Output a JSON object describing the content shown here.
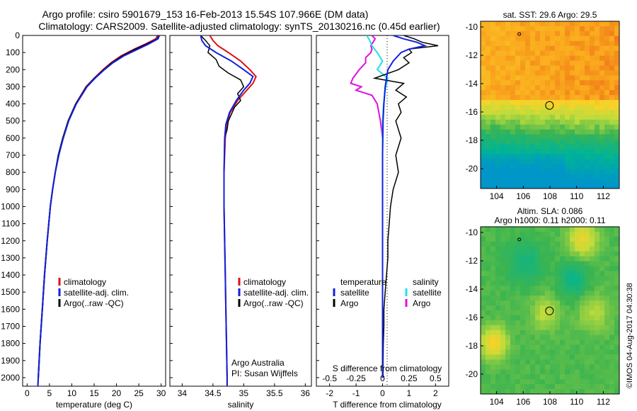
{
  "title": {
    "line1": "Argo profile: csiro 5901679_153 16-Feb-2013 15.54S 107.966E (DM data)",
    "line2": "Climatology: CARS2009. Satellite-adjusted climatology: synTS_20130216.nc (0.45d earlier)"
  },
  "colors": {
    "climatology": "#dd1111",
    "satellite": "#1122dd",
    "argo": "#000000",
    "sat_salinity": "#22e0e8",
    "argo_salinity": "#dd11dd"
  },
  "chart_data": [
    {
      "type": "line",
      "id": "temperature",
      "xlabel": "temperature (deg C)",
      "xlim": [
        -1,
        31
      ],
      "ylim": [
        2050,
        0
      ],
      "xticks": [
        0,
        5,
        10,
        15,
        20,
        25,
        30
      ],
      "yticks": [
        0,
        100,
        200,
        300,
        400,
        500,
        600,
        700,
        800,
        900,
        1000,
        1100,
        1200,
        1300,
        1400,
        1500,
        1600,
        1700,
        1800,
        1900,
        2000
      ],
      "legend": [
        "climatology",
        "satellite-adj. clim.",
        "Argo(..raw -QC)"
      ],
      "series": [
        {
          "name": "climatology",
          "depth": [
            0,
            20,
            50,
            80,
            120,
            160,
            200,
            250,
            300,
            400,
            500,
            600,
            700,
            800,
            900,
            1000,
            1200,
            1400,
            1600,
            1800,
            2000,
            2050
          ],
          "values": [
            29.2,
            28.8,
            26.5,
            24.0,
            21.0,
            18.8,
            17.0,
            15.0,
            13.2,
            10.9,
            9.2,
            8.0,
            7.0,
            6.3,
            5.7,
            5.2,
            4.5,
            3.9,
            3.4,
            2.9,
            2.5,
            2.4
          ]
        },
        {
          "name": "satellite-adj. clim.",
          "depth": [
            0,
            20,
            50,
            80,
            120,
            160,
            200,
            250,
            300,
            400,
            500,
            600,
            700,
            800,
            900,
            1000,
            1200,
            1400,
            1600,
            1800,
            2000,
            2050
          ],
          "values": [
            29.6,
            29.3,
            27.2,
            24.8,
            21.6,
            19.2,
            17.3,
            15.2,
            13.4,
            11.0,
            9.3,
            8.1,
            7.1,
            6.3,
            5.7,
            5.2,
            4.5,
            3.9,
            3.4,
            2.9,
            2.5,
            2.4
          ]
        },
        {
          "name": "Argo(..raw -QC)",
          "depth": [
            0,
            20,
            50,
            80,
            120,
            160,
            200,
            250,
            300,
            400,
            500,
            600,
            700,
            800,
            900,
            1000,
            1200,
            1400,
            1600,
            1800,
            2000
          ],
          "values": [
            29.5,
            29.2,
            26.8,
            24.3,
            21.3,
            19.0,
            17.2,
            15.1,
            13.3,
            10.9,
            9.2,
            8.0,
            7.0,
            6.3,
            5.7,
            5.2,
            4.5,
            3.9,
            3.4,
            2.9,
            2.5
          ]
        }
      ]
    },
    {
      "type": "line",
      "id": "salinity",
      "xlabel": "salinity",
      "xlim": [
        33.8,
        36.1
      ],
      "ylim": [
        2050,
        0
      ],
      "xticks": [
        34,
        34.5,
        35,
        35.5,
        36
      ],
      "legend": [
        "climatology",
        "satellite-adj. clim.",
        "Argo(..raw -QC)"
      ],
      "annotation": [
        "Argo Australia",
        "PI: Susan Wijffels"
      ],
      "series": [
        {
          "name": "climatology",
          "depth": [
            0,
            30,
            60,
            100,
            150,
            200,
            240,
            280,
            320,
            380,
            450,
            520,
            600,
            800,
            1000,
            1200,
            1400,
            1600,
            1800,
            2000,
            2050
          ],
          "values": [
            34.45,
            34.5,
            34.58,
            34.75,
            34.95,
            35.1,
            35.2,
            35.15,
            35.05,
            34.9,
            34.78,
            34.72,
            34.7,
            34.68,
            34.68,
            34.69,
            34.7,
            34.71,
            34.72,
            34.73,
            34.73
          ]
        },
        {
          "name": "satellite-adj. clim.",
          "depth": [
            0,
            30,
            60,
            100,
            150,
            200,
            240,
            280,
            320,
            380,
            450,
            520,
            600,
            800,
            1000,
            1200,
            1400,
            1600,
            1800,
            2000,
            2050
          ],
          "values": [
            34.3,
            34.32,
            34.38,
            34.55,
            34.8,
            35.0,
            35.15,
            35.1,
            35.0,
            34.88,
            34.77,
            34.71,
            34.69,
            34.68,
            34.68,
            34.69,
            34.7,
            34.71,
            34.72,
            34.73,
            34.73
          ]
        },
        {
          "name": "Argo(..raw -QC)",
          "depth": [
            0,
            30,
            60,
            100,
            140,
            180,
            220,
            260,
            300,
            340,
            380,
            420,
            460,
            500,
            550,
            600,
            800,
            1000,
            1200,
            1400,
            1600,
            1800,
            2000
          ],
          "values": [
            34.3,
            34.38,
            34.45,
            34.42,
            34.55,
            34.6,
            34.75,
            34.95,
            35.0,
            34.9,
            34.95,
            34.85,
            34.8,
            34.75,
            34.73,
            34.69,
            34.68,
            34.68,
            34.69,
            34.7,
            34.71,
            34.72,
            34.73
          ]
        }
      ]
    },
    {
      "type": "line",
      "id": "difference",
      "xlabel": "T difference from climatology",
      "xlabel_top": "S difference from climatology",
      "xlim": [
        -2.5,
        2.5
      ],
      "ylim": [
        2050,
        0
      ],
      "xticks_T": [
        -2,
        -1,
        0,
        1,
        2
      ],
      "xticks_S": [
        -0.5,
        -0.25,
        0,
        0.25,
        0.5
      ],
      "legend_temperature": {
        "title": "temperature",
        "items": [
          "satellite",
          "Argo"
        ]
      },
      "legend_salinity": {
        "title": "salinity",
        "items": [
          "satellite",
          "Argo"
        ]
      },
      "series": [
        {
          "name": "T satellite",
          "depth": [
            0,
            20,
            40,
            60,
            80,
            100,
            150,
            200,
            300,
            400,
            500,
            700,
            1000,
            1500,
            2000
          ],
          "values": [
            0.4,
            0.8,
            1.3,
            1.6,
            1.0,
            0.7,
            0.4,
            0.2,
            0.1,
            0.05,
            0.02,
            0.0,
            0.0,
            0.0,
            0.0
          ]
        },
        {
          "name": "T Argo",
          "depth": [
            0,
            20,
            40,
            60,
            80,
            100,
            130,
            160,
            200,
            250,
            280,
            320,
            360,
            400,
            450,
            500,
            550,
            600,
            700,
            800,
            900,
            1000,
            1100,
            1200,
            1300,
            1400,
            1500,
            1600,
            1700,
            1800,
            1900,
            2000
          ],
          "values": [
            0.8,
            1.2,
            1.5,
            2.1,
            1.0,
            1.1,
            0.8,
            1.0,
            0.6,
            -0.3,
            0.8,
            0.5,
            0.9,
            0.6,
            0.7,
            0.5,
            0.6,
            0.7,
            0.5,
            0.6,
            0.4,
            0.3,
            0.25,
            0.2,
            0.2,
            0.15,
            0.1,
            0.05,
            0.05,
            0.03,
            0.02,
            0.02
          ]
        },
        {
          "name": "S satellite",
          "depth": [
            0,
            30,
            60,
            100,
            150,
            200,
            250,
            300,
            400,
            500,
            600,
            800,
            1000,
            1500,
            2000
          ],
          "values": [
            -0.15,
            -0.12,
            -0.1,
            -0.05,
            0.0,
            -0.05,
            0.05,
            0.03,
            0.01,
            0.0,
            0.0,
            0.0,
            0.0,
            0.0,
            0.0
          ]
        },
        {
          "name": "S Argo",
          "depth": [
            0,
            20,
            40,
            60,
            80,
            100,
            130,
            160,
            200,
            250,
            280,
            300,
            320,
            350,
            400,
            500,
            600,
            800,
            1000,
            1500,
            2000
          ],
          "values": [
            -0.1,
            -0.07,
            -0.09,
            -0.11,
            -0.1,
            -0.11,
            -0.16,
            -0.16,
            -0.22,
            -0.28,
            -0.3,
            -0.2,
            -0.25,
            -0.1,
            -0.05,
            -0.02,
            0.0,
            0.0,
            0.0,
            0.0,
            0.0
          ]
        }
      ]
    },
    {
      "type": "heatmap",
      "id": "sst_map",
      "title": "sat. SST: 29.6  Argo: 29.5",
      "xlim": [
        102.8,
        113.2
      ],
      "ylim": [
        -21.4,
        -9.6
      ],
      "xticks": [
        104,
        106,
        108,
        110,
        112
      ],
      "yticks": [
        -10,
        -12,
        -14,
        -16,
        -18,
        -20
      ],
      "profile_position": {
        "lon": 107.966,
        "lat": -15.54
      },
      "previous_position": {
        "lon": 105.7,
        "lat": -10.5
      }
    },
    {
      "type": "heatmap",
      "id": "sla_map",
      "title": [
        "Altim. SLA: 0.086",
        "Argo h1000: 0.11  h2000: 0.11"
      ],
      "xlim": [
        102.8,
        113.2
      ],
      "ylim": [
        -21.4,
        -9.6
      ],
      "xticks": [
        104,
        106,
        108,
        110,
        112
      ],
      "yticks": [
        -10,
        -12,
        -14,
        -16,
        -18,
        -20
      ],
      "profile_position": {
        "lon": 107.966,
        "lat": -15.54
      },
      "previous_position": {
        "lon": 105.7,
        "lat": -10.5
      }
    }
  ],
  "footer": {
    "credit": "©IMOS 04-Aug-2017 04:30:38"
  }
}
